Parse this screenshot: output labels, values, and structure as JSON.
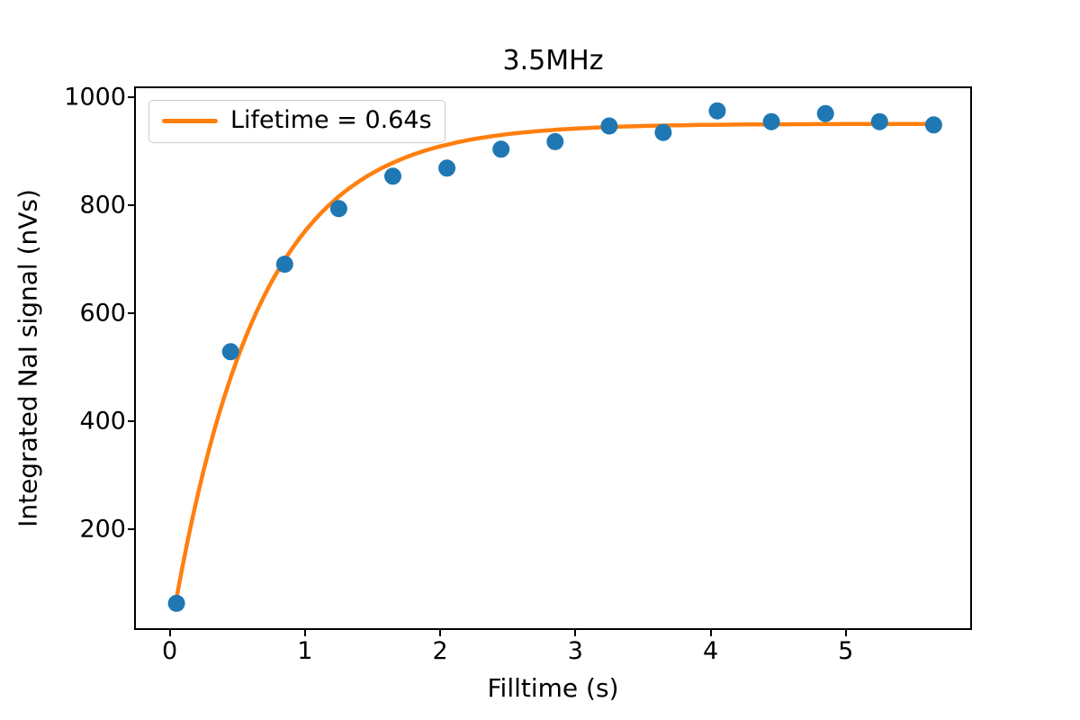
{
  "chart_data": {
    "type": "scatter",
    "title": "3.5MHz",
    "xlabel": "Filltime (s)",
    "ylabel": "Integrated NaI signal (nVs)",
    "xlim": [
      -0.25,
      5.92
    ],
    "ylim": [
      16,
      1016
    ],
    "xticks": [
      0,
      1,
      2,
      3,
      4,
      5
    ],
    "yticks": [
      200,
      400,
      600,
      800,
      1000
    ],
    "grid": false,
    "legend_position": "upper-left",
    "series": [
      {
        "name": "measured-data",
        "type": "scatter",
        "color": "#1f77b4",
        "marker_radius": 9.5,
        "x": [
          0.05,
          0.45,
          0.85,
          1.25,
          1.65,
          2.05,
          2.45,
          2.85,
          3.25,
          3.65,
          4.05,
          4.45,
          4.85,
          5.25,
          5.65
        ],
        "y": [
          62,
          528,
          690,
          793,
          853,
          868,
          903,
          917,
          946,
          934,
          974,
          954,
          969,
          954,
          948
        ]
      },
      {
        "name": "exponential-fit",
        "type": "line",
        "label": "Lifetime = 0.64s",
        "color": "#ff7f0e",
        "line_width": 4.5,
        "model": "A*(1-exp(-t/tau))",
        "A": 950,
        "tau": 0.64,
        "t_range": [
          0.05,
          5.65
        ]
      }
    ]
  },
  "colors": {
    "background": "#ffffff",
    "axes": "#000000",
    "scatter_points": "#1f77b4",
    "fit_line": "#ff7f0e",
    "legend_border": "#cccccc"
  }
}
